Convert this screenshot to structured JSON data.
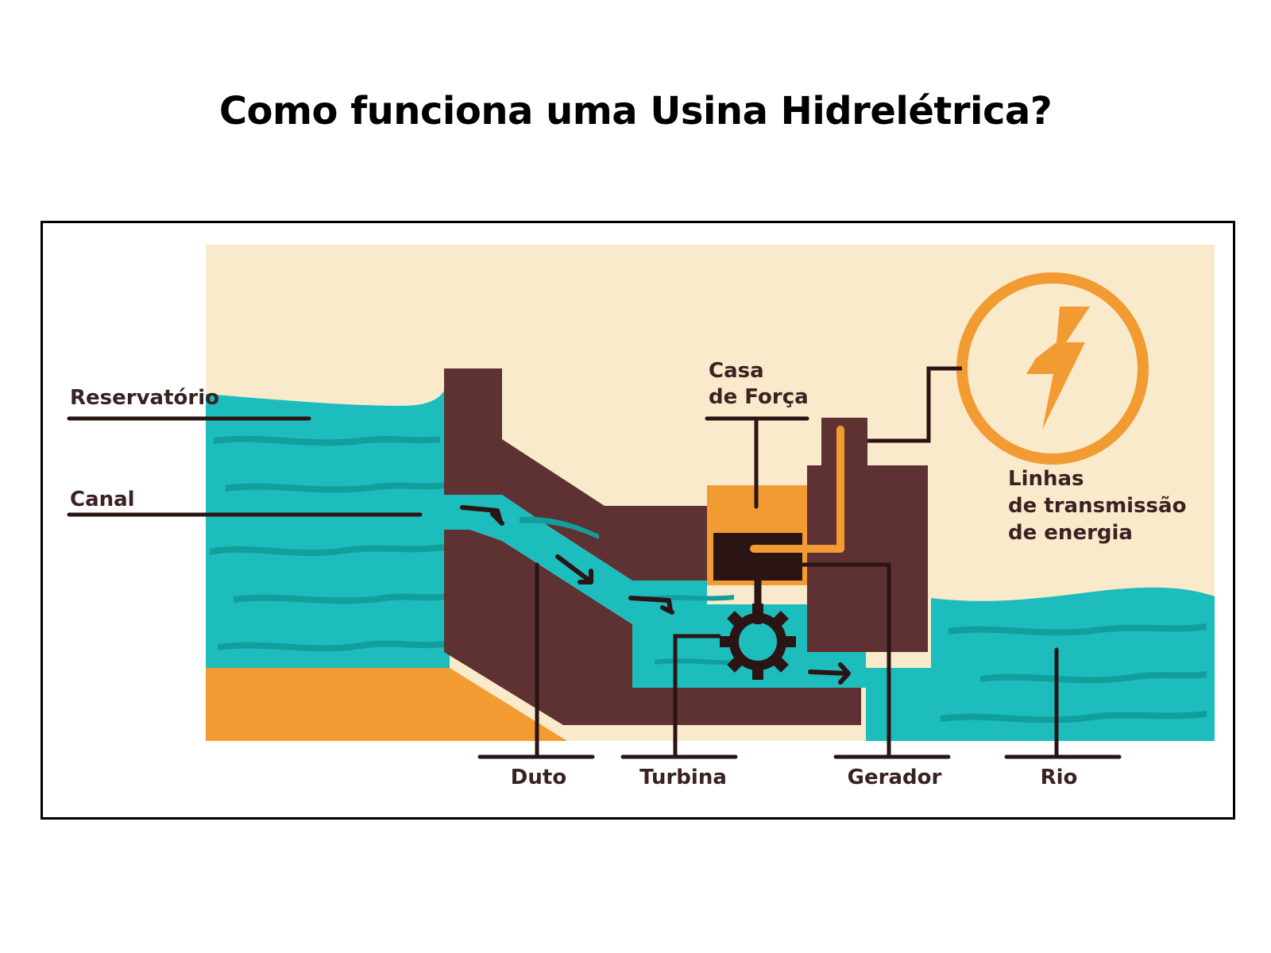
{
  "title": "Como funciona uma Usina Hidrelétrica?",
  "labels": {
    "reservatorio": "Reservatório",
    "canal": "Canal",
    "casa_line1": "Casa",
    "casa_line2": "de Força",
    "linhas_line1": "Linhas",
    "linhas_line2": "de transmissão",
    "linhas_line3": "de energia",
    "duto": "Duto",
    "turbina": "Turbina",
    "gerador": "Gerador",
    "rio": "Rio"
  },
  "icons": {
    "energy": "lightning-bolt-icon",
    "turbine": "gear-icon",
    "flow": "arrow-icon"
  },
  "colors": {
    "sky": "#f9eacb",
    "water": "#1dbdbd",
    "water_dark": "#119f9c",
    "dam": "#5e3133",
    "orange": "#f39b33",
    "line": "#2a1414"
  }
}
